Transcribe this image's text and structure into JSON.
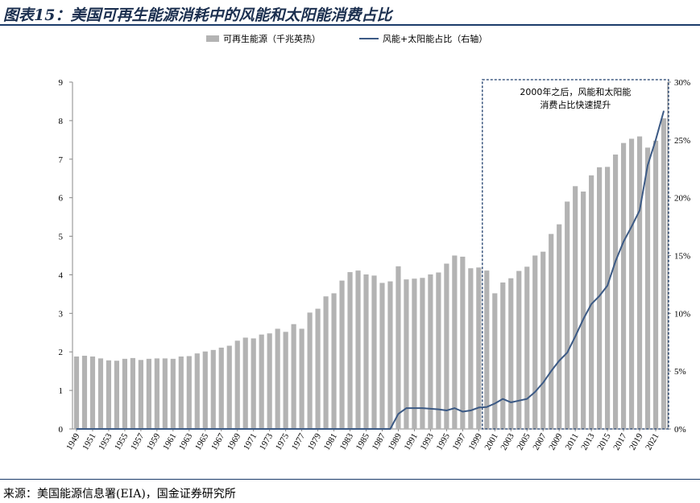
{
  "title": "图表15：美国可再生能源消耗中的风能和太阳能消费占比",
  "source": "来源：美国能源信息署(EIA)，国金证券研究所",
  "chart_data": {
    "type": "bar+line",
    "title": "图表15：美国可再生能源消耗中的风能和太阳能消费占比",
    "years": [
      1949,
      1950,
      1951,
      1952,
      1953,
      1954,
      1955,
      1956,
      1957,
      1958,
      1959,
      1960,
      1961,
      1962,
      1963,
      1964,
      1965,
      1966,
      1967,
      1968,
      1969,
      1970,
      1971,
      1972,
      1973,
      1974,
      1975,
      1976,
      1977,
      1978,
      1979,
      1980,
      1981,
      1982,
      1983,
      1984,
      1985,
      1986,
      1987,
      1988,
      1989,
      1990,
      1991,
      1992,
      1993,
      1994,
      1995,
      1996,
      1997,
      1998,
      1999,
      2000,
      2001,
      2002,
      2003,
      2004,
      2005,
      2006,
      2007,
      2008,
      2009,
      2010,
      2011,
      2012,
      2013,
      2014,
      2015,
      2016,
      2017,
      2018,
      2019,
      2020,
      2021,
      2022
    ],
    "x_tick_labels": [
      "1949",
      "1951",
      "1953",
      "1955",
      "1957",
      "1959",
      "1961",
      "1963",
      "1965",
      "1967",
      "1969",
      "1971",
      "1973",
      "1975",
      "1977",
      "1979",
      "1981",
      "1983",
      "1985",
      "1987",
      "1989",
      "1991",
      "1993",
      "1995",
      "1997",
      "1999",
      "2001",
      "2003",
      "2005",
      "2007",
      "2009",
      "2011",
      "2013",
      "2015",
      "2017",
      "2019",
      "2021"
    ],
    "series": [
      {
        "name": "可再生能源（千兆英热）",
        "type": "bar",
        "axis": "left",
        "color": "#b3b3b3",
        "values": [
          1.88,
          1.9,
          1.88,
          1.83,
          1.78,
          1.77,
          1.82,
          1.84,
          1.79,
          1.82,
          1.83,
          1.83,
          1.82,
          1.88,
          1.89,
          1.96,
          2.01,
          2.05,
          2.11,
          2.16,
          2.29,
          2.37,
          2.35,
          2.45,
          2.48,
          2.6,
          2.52,
          2.72,
          2.6,
          3.02,
          3.12,
          3.44,
          3.52,
          3.85,
          4.07,
          4.11,
          4.01,
          3.98,
          3.79,
          3.83,
          4.22,
          3.88,
          3.9,
          3.92,
          4.01,
          4.06,
          4.29,
          4.5,
          4.47,
          4.17,
          4.19,
          4.11,
          3.52,
          3.8,
          3.91,
          4.1,
          4.21,
          4.5,
          4.6,
          5.06,
          5.31,
          5.9,
          6.3,
          6.16,
          6.58,
          6.79,
          6.8,
          7.12,
          7.42,
          7.53,
          7.59,
          7.3,
          7.48,
          8.06
        ]
      },
      {
        "name": "风能+太阳能占比（右轴）",
        "type": "line",
        "axis": "right",
        "color": "#3c5a85",
        "values": [
          0,
          0,
          0,
          0,
          0,
          0,
          0,
          0,
          0,
          0,
          0,
          0,
          0,
          0,
          0,
          0,
          0,
          0,
          0,
          0,
          0,
          0,
          0,
          0,
          0,
          0,
          0,
          0,
          0,
          0,
          0,
          0,
          0,
          0,
          0,
          0,
          0,
          0,
          0,
          0,
          1.3,
          1.8,
          1.8,
          1.8,
          1.75,
          1.7,
          1.6,
          1.8,
          1.5,
          1.6,
          1.85,
          1.9,
          2.2,
          2.6,
          2.3,
          2.45,
          2.6,
          3.2,
          4.0,
          5.0,
          5.9,
          6.6,
          8.0,
          9.5,
          10.8,
          11.5,
          12.4,
          14.5,
          16.2,
          17.5,
          18.9,
          22.8,
          25.0,
          27.5
        ]
      }
    ],
    "y_left": {
      "min": 0,
      "max": 9,
      "ticks": [
        "0",
        "1",
        "2",
        "3",
        "4",
        "5",
        "6",
        "7",
        "8",
        "9"
      ]
    },
    "y_right": {
      "min": 0,
      "max": 30,
      "ticks": [
        "0%",
        "5%",
        "10%",
        "15%",
        "20%",
        "25%",
        "30%"
      ]
    },
    "legend_position": "top-center",
    "annotation": {
      "line1": "2000年之后，风能和太阳能",
      "line2": "消费占比快速提升",
      "from_year": 2000,
      "to_year": 2022
    },
    "grid": false
  }
}
